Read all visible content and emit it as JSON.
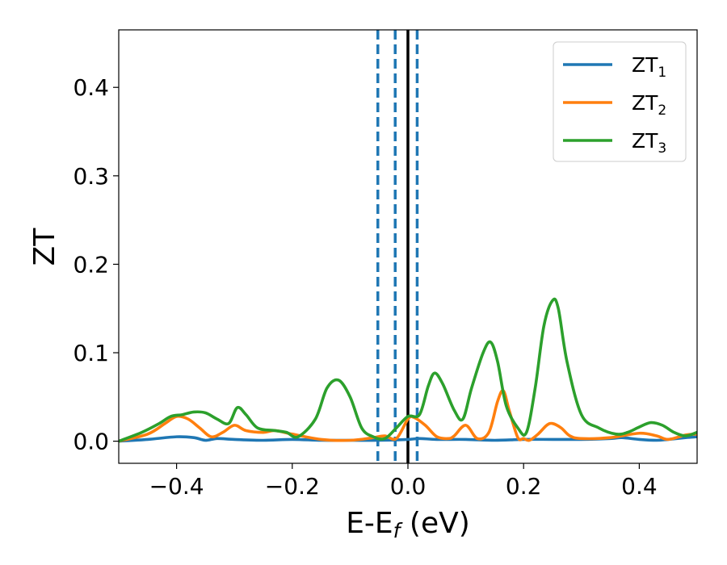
{
  "chart_data": {
    "type": "line",
    "title": "",
    "xlabel": "E-E",
    "xlabel_sub": "f",
    "xlabel_unit": " (eV)",
    "ylabel": "ZT",
    "xlim": [
      -0.5,
      0.5
    ],
    "ylim": [
      -0.025,
      0.465
    ],
    "xticks": [
      -0.4,
      -0.2,
      0.0,
      0.2,
      0.4
    ],
    "xtick_labels": [
      "−0.4",
      "−0.2",
      "0.0",
      "0.2",
      "0.4"
    ],
    "yticks": [
      0.0,
      0.1,
      0.2,
      0.3,
      0.4
    ],
    "ytick_labels": [
      "0.0",
      "0.1",
      "0.2",
      "0.3",
      "0.4"
    ],
    "grid": false,
    "legend_position": "top-right",
    "vlines": [
      {
        "x": -0.052,
        "style": "dashed",
        "color": "#1f77b4"
      },
      {
        "x": -0.022,
        "style": "dashed",
        "color": "#1f77b4"
      },
      {
        "x": 0.016,
        "style": "dashed",
        "color": "#1f77b4"
      },
      {
        "x": 0.0,
        "style": "solid",
        "color": "#000000"
      }
    ],
    "series": [
      {
        "name": "ZT",
        "subscript": "1",
        "color": "#1f77b4",
        "x": [
          -0.5,
          -0.45,
          -0.4,
          -0.37,
          -0.35,
          -0.33,
          -0.3,
          -0.25,
          -0.2,
          -0.15,
          -0.1,
          -0.05,
          0.0,
          0.02,
          0.05,
          0.1,
          0.15,
          0.2,
          0.25,
          0.3,
          0.35,
          0.37,
          0.4,
          0.43,
          0.45,
          0.48,
          0.5
        ],
        "values": [
          0.0,
          0.002,
          0.005,
          0.004,
          0.001,
          0.003,
          0.002,
          0.001,
          0.002,
          0.001,
          0.001,
          0.001,
          0.002,
          0.003,
          0.002,
          0.002,
          0.001,
          0.002,
          0.002,
          0.002,
          0.003,
          0.004,
          0.002,
          0.001,
          0.002,
          0.004,
          0.005
        ]
      },
      {
        "name": "ZT",
        "subscript": "2",
        "color": "#ff7f0e",
        "x": [
          -0.5,
          -0.45,
          -0.42,
          -0.4,
          -0.38,
          -0.36,
          -0.34,
          -0.32,
          -0.3,
          -0.28,
          -0.25,
          -0.23,
          -0.2,
          -0.15,
          -0.1,
          -0.06,
          -0.04,
          -0.02,
          0.0,
          0.01,
          0.03,
          0.05,
          0.07,
          0.08,
          0.1,
          0.12,
          0.14,
          0.155,
          0.165,
          0.175,
          0.19,
          0.2,
          0.21,
          0.225,
          0.24,
          0.25,
          0.265,
          0.28,
          0.3,
          0.35,
          0.4,
          0.43,
          0.45,
          0.48,
          0.5
        ],
        "values": [
          0.0,
          0.008,
          0.02,
          0.028,
          0.025,
          0.015,
          0.005,
          0.01,
          0.018,
          0.012,
          0.01,
          0.012,
          0.008,
          0.002,
          0.001,
          0.004,
          0.006,
          0.003,
          0.025,
          0.027,
          0.018,
          0.005,
          0.003,
          0.006,
          0.018,
          0.003,
          0.01,
          0.045,
          0.057,
          0.035,
          0.004,
          0.003,
          0.001,
          0.008,
          0.018,
          0.02,
          0.015,
          0.006,
          0.003,
          0.004,
          0.009,
          0.006,
          0.002,
          0.007,
          0.008
        ]
      },
      {
        "name": "ZT",
        "subscript": "3",
        "color": "#2ca02c",
        "x": [
          -0.5,
          -0.46,
          -0.43,
          -0.41,
          -0.39,
          -0.37,
          -0.35,
          -0.33,
          -0.31,
          -0.295,
          -0.28,
          -0.26,
          -0.23,
          -0.21,
          -0.19,
          -0.16,
          -0.14,
          -0.12,
          -0.1,
          -0.08,
          -0.06,
          -0.04,
          -0.02,
          0.0,
          0.02,
          0.035,
          0.046,
          0.06,
          0.08,
          0.095,
          0.11,
          0.13,
          0.143,
          0.155,
          0.17,
          0.19,
          0.205,
          0.22,
          0.235,
          0.25,
          0.26,
          0.275,
          0.3,
          0.33,
          0.36,
          0.38,
          0.4,
          0.42,
          0.44,
          0.46,
          0.48,
          0.5
        ],
        "values": [
          0.0,
          0.01,
          0.02,
          0.028,
          0.03,
          0.033,
          0.032,
          0.025,
          0.02,
          0.038,
          0.03,
          0.015,
          0.012,
          0.01,
          0.005,
          0.025,
          0.06,
          0.069,
          0.05,
          0.015,
          0.005,
          0.003,
          0.015,
          0.028,
          0.03,
          0.062,
          0.077,
          0.065,
          0.035,
          0.025,
          0.06,
          0.1,
          0.112,
          0.09,
          0.04,
          0.015,
          0.01,
          0.06,
          0.13,
          0.159,
          0.15,
          0.09,
          0.03,
          0.015,
          0.008,
          0.01,
          0.016,
          0.021,
          0.018,
          0.01,
          0.006,
          0.01
        ]
      }
    ]
  }
}
